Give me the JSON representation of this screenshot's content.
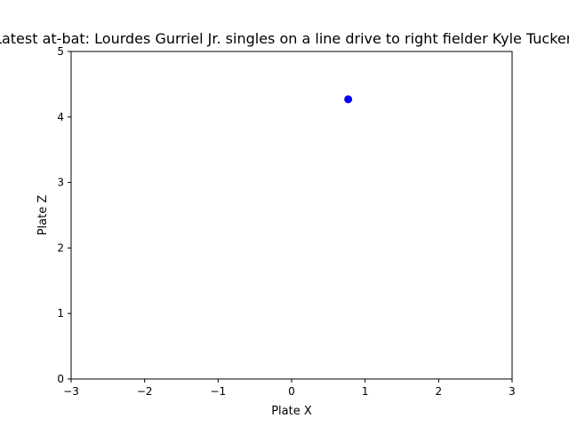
{
  "chart_data": {
    "type": "scatter",
    "title": "Latest at-bat: Lourdes Gurriel Jr.  singles on a line drive to right fielder Kyle Tucker.",
    "xlabel": "Plate X",
    "ylabel": "Plate Z",
    "xlim": [
      -3,
      3
    ],
    "ylim": [
      0,
      5
    ],
    "xticks": [
      -3,
      -2,
      -1,
      0,
      1,
      2,
      3
    ],
    "xtick_labels": [
      "−3",
      "−2",
      "−1",
      "0",
      "1",
      "2",
      "3"
    ],
    "yticks": [
      0,
      1,
      2,
      3,
      4,
      5
    ],
    "ytick_labels": [
      "0",
      "1",
      "2",
      "3",
      "4",
      "5"
    ],
    "grid": false,
    "series": [
      {
        "color": "#0000ff",
        "points": [
          {
            "x": 0.77,
            "y": 4.27
          }
        ]
      }
    ]
  }
}
